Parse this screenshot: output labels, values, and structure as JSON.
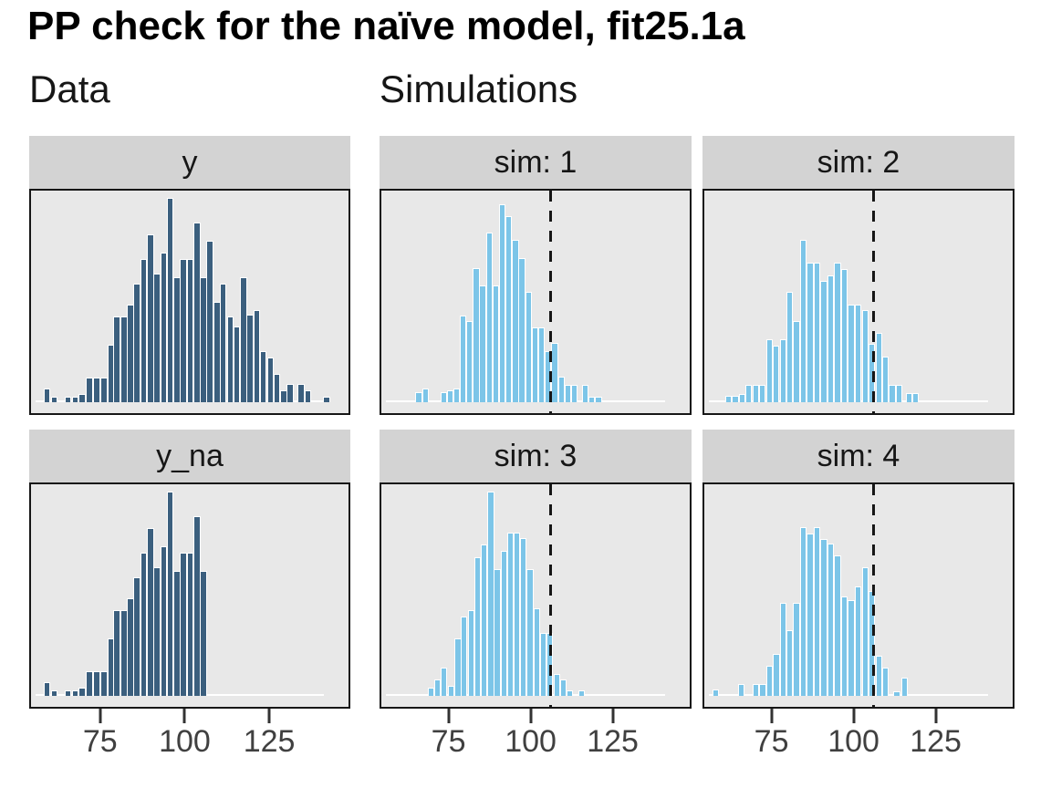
{
  "title": "PP check for the naïve model, fit25.1a",
  "groups": {
    "data_label": "Data",
    "sims_label": "Simulations"
  },
  "chart_data": {
    "type": "bar",
    "subtype": "histogram-grid (posterior predictive check, 2 data panels + 4 simulation panels)",
    "xlabel": "",
    "ylabel": "",
    "x_ticks": [
      75,
      100,
      125
    ],
    "x_domain": [
      54,
      149
    ],
    "bin_width": 2.05,
    "reference_line_x": 106,
    "zero_line": [
      55.5,
      141.5
    ],
    "height_units": "h = fraction of tallest bar in panel; peak_pct = tallest bar as % of panel height",
    "colors": {
      "dark": "#3b5f7e",
      "light": "#7cc5e8"
    },
    "panels": [
      {
        "strip": "y",
        "group": "Data",
        "color": "dark",
        "peak_pct": 92,
        "has_ref_line": false,
        "bars": [
          [
            57.8,
            0.07
          ],
          [
            59.9,
            0.03
          ],
          [
            64.1,
            0.03
          ],
          [
            66.2,
            0.03
          ],
          [
            68.2,
            0.04
          ],
          [
            70.4,
            0.12
          ],
          [
            72.6,
            0.12
          ],
          [
            74.8,
            0.12
          ],
          [
            76.8,
            0.28
          ],
          [
            78.7,
            0.42
          ],
          [
            80.8,
            0.42
          ],
          [
            82.7,
            0.48
          ],
          [
            84.7,
            0.58
          ],
          [
            86.7,
            0.7
          ],
          [
            88.7,
            0.82
          ],
          [
            90.6,
            0.63
          ],
          [
            92.7,
            0.73
          ],
          [
            94.6,
            1.0
          ],
          [
            96.7,
            0.61
          ],
          [
            98.6,
            0.7
          ],
          [
            100.6,
            0.7
          ],
          [
            102.6,
            0.88
          ],
          [
            104.6,
            0.61
          ],
          [
            106.5,
            0.79
          ],
          [
            108.6,
            0.49
          ],
          [
            110.5,
            0.58
          ],
          [
            112.6,
            0.42
          ],
          [
            114.5,
            0.37
          ],
          [
            116.6,
            0.61
          ],
          [
            118.5,
            0.43
          ],
          [
            120.6,
            0.45
          ],
          [
            122.5,
            0.25
          ],
          [
            124.6,
            0.22
          ],
          [
            126.5,
            0.14
          ],
          [
            128.6,
            0.06
          ],
          [
            130.5,
            0.09
          ],
          [
            133.8,
            0.09
          ],
          [
            135.8,
            0.06
          ],
          [
            141.4,
            0.03
          ]
        ]
      },
      {
        "strip": "sim: 1",
        "group": "Simulations",
        "color": "light",
        "peak_pct": 89,
        "has_ref_line": true,
        "bars": [
          [
            64.5,
            0.05
          ],
          [
            66.7,
            0.07
          ],
          [
            72.2,
            0.05
          ],
          [
            74.1,
            0.06
          ],
          [
            76.1,
            0.07
          ],
          [
            78.1,
            0.44
          ],
          [
            80.1,
            0.41
          ],
          [
            82.2,
            0.68
          ],
          [
            84.2,
            0.59
          ],
          [
            86.2,
            0.86
          ],
          [
            88.2,
            0.59
          ],
          [
            90.3,
            1.0
          ],
          [
            92.2,
            0.94
          ],
          [
            94.3,
            0.82
          ],
          [
            96.3,
            0.73
          ],
          [
            98.3,
            0.56
          ],
          [
            100.3,
            0.38
          ],
          [
            102.4,
            0.38
          ],
          [
            104.3,
            0.26
          ],
          [
            106.4,
            0.3
          ],
          [
            108.4,
            0.13
          ],
          [
            110.4,
            0.09
          ],
          [
            112.4,
            0.09
          ],
          [
            115.7,
            0.09
          ],
          [
            117.8,
            0.03
          ],
          [
            119.9,
            0.03
          ]
        ]
      },
      {
        "strip": "sim: 2",
        "group": "Simulations",
        "color": "light",
        "peak_pct": 73,
        "has_ref_line": true,
        "bars": [
          [
            60.4,
            0.04
          ],
          [
            62.5,
            0.04
          ],
          [
            64.6,
            0.05
          ],
          [
            66.7,
            0.11
          ],
          [
            68.8,
            0.11
          ],
          [
            70.9,
            0.11
          ],
          [
            73.0,
            0.39
          ],
          [
            75.1,
            0.35
          ],
          [
            77.2,
            0.39
          ],
          [
            79.3,
            0.68
          ],
          [
            81.4,
            0.5
          ],
          [
            83.5,
            1.0
          ],
          [
            85.6,
            0.86
          ],
          [
            87.7,
            0.86
          ],
          [
            89.8,
            0.75
          ],
          [
            91.9,
            0.78
          ],
          [
            94.0,
            0.86
          ],
          [
            96.1,
            0.82
          ],
          [
            98.2,
            0.6
          ],
          [
            100.3,
            0.6
          ],
          [
            102.5,
            0.57
          ],
          [
            104.5,
            0.36
          ],
          [
            106.7,
            0.43
          ],
          [
            108.7,
            0.28
          ],
          [
            110.9,
            0.11
          ],
          [
            112.9,
            0.11
          ],
          [
            116.0,
            0.06
          ],
          [
            118.1,
            0.06
          ]
        ]
      },
      {
        "strip": "y_na",
        "group": "Data",
        "color": "dark",
        "peak_pct": 92,
        "has_ref_line": false,
        "bars": [
          [
            57.8,
            0.07
          ],
          [
            59.9,
            0.03
          ],
          [
            64.1,
            0.03
          ],
          [
            66.2,
            0.03
          ],
          [
            68.2,
            0.04
          ],
          [
            70.4,
            0.12
          ],
          [
            72.6,
            0.12
          ],
          [
            74.8,
            0.12
          ],
          [
            76.8,
            0.28
          ],
          [
            78.7,
            0.42
          ],
          [
            80.8,
            0.42
          ],
          [
            82.7,
            0.48
          ],
          [
            84.7,
            0.58
          ],
          [
            86.7,
            0.7
          ],
          [
            88.7,
            0.82
          ],
          [
            90.6,
            0.63
          ],
          [
            92.7,
            0.73
          ],
          [
            94.6,
            1.0
          ],
          [
            96.7,
            0.61
          ],
          [
            98.6,
            0.7
          ],
          [
            100.6,
            0.7
          ],
          [
            102.6,
            0.88
          ],
          [
            104.6,
            0.61
          ]
        ]
      },
      {
        "strip": "sim: 3",
        "group": "Simulations",
        "color": "light",
        "peak_pct": 92,
        "has_ref_line": true,
        "bars": [
          [
            68.2,
            0.04
          ],
          [
            70.3,
            0.08
          ],
          [
            72.3,
            0.14
          ],
          [
            74.5,
            0.05
          ],
          [
            76.6,
            0.28
          ],
          [
            78.5,
            0.39
          ],
          [
            80.6,
            0.42
          ],
          [
            82.6,
            0.68
          ],
          [
            84.6,
            0.74
          ],
          [
            86.7,
            1.0
          ],
          [
            88.7,
            0.62
          ],
          [
            90.7,
            0.71
          ],
          [
            92.7,
            0.8
          ],
          [
            94.7,
            0.8
          ],
          [
            96.7,
            0.77
          ],
          [
            98.8,
            0.62
          ],
          [
            100.8,
            0.43
          ],
          [
            102.8,
            0.31
          ],
          [
            104.8,
            0.31
          ],
          [
            107.0,
            0.11
          ],
          [
            109.1,
            0.08
          ],
          [
            111.1,
            0.03
          ],
          [
            114.6,
            0.03
          ]
        ]
      },
      {
        "strip": "sim: 4",
        "group": "Simulations",
        "color": "light",
        "peak_pct": 76,
        "has_ref_line": true,
        "bars": [
          [
            56.4,
            0.04
          ],
          [
            64.4,
            0.07
          ],
          [
            68.9,
            0.07
          ],
          [
            71.0,
            0.07
          ],
          [
            73.0,
            0.18
          ],
          [
            75.2,
            0.25
          ],
          [
            77.2,
            0.55
          ],
          [
            79.3,
            0.39
          ],
          [
            81.4,
            0.55
          ],
          [
            83.5,
            1.0
          ],
          [
            85.6,
            0.96
          ],
          [
            87.7,
            1.0
          ],
          [
            89.8,
            0.93
          ],
          [
            91.9,
            0.9
          ],
          [
            94.0,
            0.83
          ],
          [
            96.1,
            0.59
          ],
          [
            98.2,
            0.57
          ],
          [
            100.3,
            0.65
          ],
          [
            102.5,
            0.76
          ],
          [
            104.5,
            0.62
          ],
          [
            106.7,
            0.24
          ],
          [
            108.7,
            0.17
          ],
          [
            112.3,
            0.03
          ],
          [
            114.6,
            0.11
          ]
        ]
      }
    ]
  }
}
